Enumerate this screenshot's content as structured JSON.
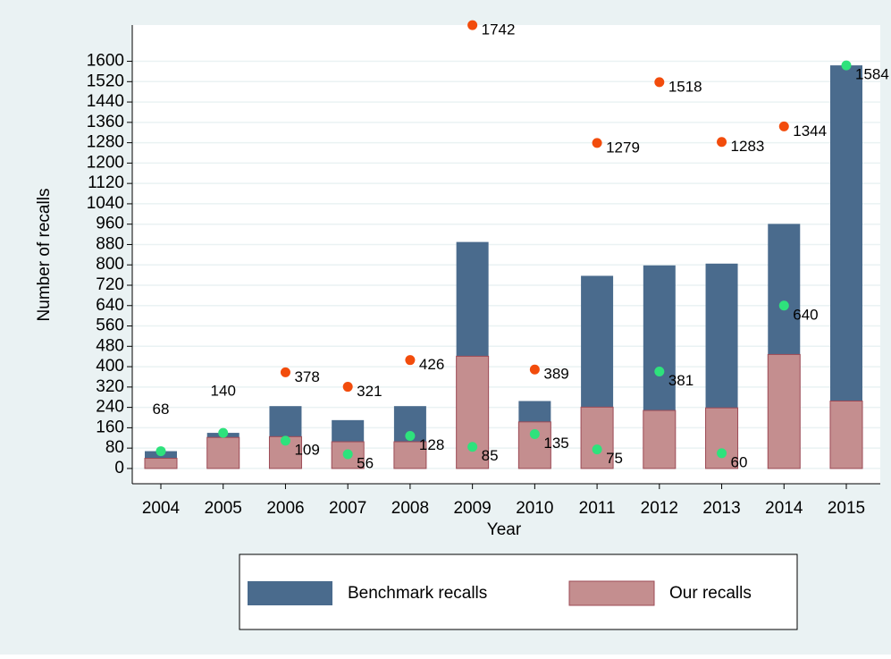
{
  "chart_data": {
    "type": "bar",
    "xlabel": "Year",
    "ylabel": "Number of recalls",
    "categories": [
      "2004",
      "2005",
      "2006",
      "2007",
      "2008",
      "2009",
      "2010",
      "2011",
      "2012",
      "2013",
      "2014",
      "2015"
    ],
    "series": [
      {
        "name": "Benchmark recalls",
        "color": "#4a6b8d",
        "values": [
          68,
          140,
          245,
          190,
          245,
          890,
          265,
          757,
          798,
          805,
          961,
          1584
        ]
      },
      {
        "name": "Our recalls",
        "color": "#c48e8f",
        "values": [
          40,
          122,
          125,
          105,
          105,
          441,
          183,
          241,
          228,
          238,
          448,
          265
        ]
      }
    ],
    "points": [
      {
        "type": "scatter",
        "color": "#f24c0c",
        "values": [
          null,
          null,
          378,
          321,
          426,
          1742,
          389,
          1279,
          1518,
          1283,
          1344,
          null
        ]
      },
      {
        "type": "scatter",
        "color": "#2ee27c",
        "values": [
          68,
          140,
          109,
          56,
          128,
          85,
          135,
          75,
          381,
          60,
          640,
          1584
        ]
      }
    ],
    "ylim": [
      -60,
      1760
    ],
    "yticks": [
      0,
      80,
      160,
      240,
      320,
      400,
      480,
      560,
      640,
      720,
      800,
      880,
      960,
      1040,
      1120,
      1200,
      1280,
      1360,
      1440,
      1520,
      1600
    ],
    "grid": true,
    "legend": "bottom"
  }
}
